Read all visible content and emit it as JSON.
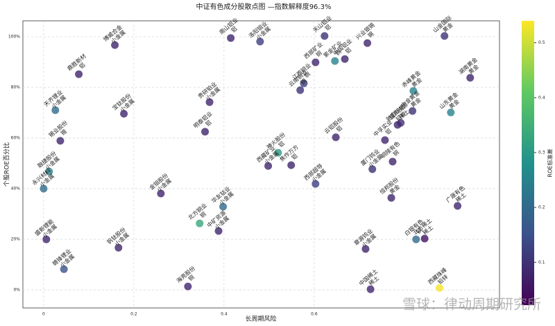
{
  "chart_data": {
    "type": "scatter",
    "title": "中证有色成分股散点图  —指数解释度96.3%",
    "xlabel": "长周期风险",
    "ylabel": "个股ROE百分比",
    "colorbar_label": "ROE标准差",
    "watermark": "雪球：律动周期研究所",
    "colormap": "viridis",
    "grid": true,
    "names": [
      "鼎胜新材",
      "博威合金",
      "南山铝业",
      "洛阳钼业",
      "天山铝业",
      "中国铝业",
      "紫金矿业",
      "西部矿业",
      "江西铜业",
      "云南铜业",
      "兴业银锡",
      "山金国际",
      "湖南黄金",
      "赤峰黄金",
      "中金黄金",
      "山东黄金",
      "盛和资源",
      "驰宏锌锗",
      "中孚实业",
      "云铝股份",
      "神火股份",
      "西藏矿业",
      "焦作万方",
      "西部超导",
      "厦门钨业",
      "铜陵有色",
      "恒邦股份",
      "广晟有色",
      "章源钨业",
      "中国稀土",
      "北方稀土",
      "白银有色",
      "西藏珠峰",
      "天齐锂业",
      "锡业股份",
      "融捷股份",
      "永兴材料",
      "盛新锂能",
      "赣锋锂业",
      "宝钛股份",
      "钒钛股份",
      "金钼股份",
      "明泰铝业",
      "贵研铂业",
      "北方铜业",
      "华友钴业",
      "中矿资源",
      "海亮股份"
    ],
    "sectors": [
      "铝",
      "小金属",
      "铝",
      "小金属",
      "铝",
      "铝",
      "铜",
      "铜",
      "铜",
      "铜",
      "锡",
      "黄金",
      "黄金",
      "黄金",
      "黄金",
      "黄金",
      "稀土",
      "铅锌",
      "铝",
      "铝",
      "铝",
      "小金属",
      "铝",
      "小金属",
      "小金属",
      "铜",
      "黄金",
      "稀土",
      "小金属",
      "稀土",
      "稀土",
      "铜",
      "铅锌",
      "小金属",
      "锡",
      "小金属",
      "小金属",
      "小金属",
      "小金属",
      "小金属",
      "小金属",
      "小金属",
      "铝",
      "小金属",
      "铜",
      "小金属",
      "小金属",
      "铜"
    ],
    "x": [
      0.078,
      0.158,
      0.415,
      0.48,
      0.623,
      0.668,
      0.646,
      0.603,
      0.577,
      0.569,
      0.718,
      0.889,
      0.946,
      0.82,
      0.818,
      0.903,
      0.792,
      0.785,
      0.757,
      0.648,
      0.52,
      0.498,
      0.549,
      0.603,
      0.729,
      0.774,
      0.771,
      0.918,
      0.714,
      0.725,
      0.845,
      0.826,
      0.878,
      0.026,
      0.037,
      0.012,
      0,
      0.006,
      0.045,
      0.178,
      0.166,
      0.26,
      0.358,
      0.368,
      0.346,
      0.398,
      0.388,
      0.32
    ],
    "y": [
      85.2,
      96.7,
      99.5,
      98.1,
      100.3,
      91.2,
      90.4,
      89.9,
      81.6,
      78.9,
      97.5,
      100.3,
      83.8,
      78.6,
      70.7,
      70.1,
      66.0,
      65.2,
      59.2,
      60.3,
      54.2,
      49.0,
      49.3,
      41.9,
      47.7,
      50.7,
      36.4,
      33.2,
      16.2,
      0.3,
      20.3,
      20.0,
      0.8,
      71.0,
      58.9,
      46.8,
      40,
      20.0,
      8.2,
      69.6,
      16.7,
      38.1,
      62.5,
      74.2,
      26.3,
      32.9,
      23.3,
      1.4
    ],
    "color_values": [
      0.08,
      0.08,
      0.08,
      0.12,
      0.1,
      0.08,
      0.25,
      0.08,
      0.12,
      0.1,
      0.08,
      0.1,
      0.08,
      0.25,
      0.1,
      0.25,
      0.1,
      0.08,
      0.08,
      0.08,
      0.3,
      0.08,
      0.08,
      0.12,
      0.1,
      0.08,
      0.08,
      0.08,
      0.08,
      0.08,
      0.05,
      0.2,
      0.53,
      0.2,
      0.08,
      0.25,
      0.2,
      0.08,
      0.15,
      0.08,
      0.08,
      0.08,
      0.08,
      0.08,
      0.33,
      0.2,
      0.08,
      0.08
    ],
    "xlim": [
      -0.046,
      1.011
    ],
    "ylim": [
      -7.1,
      106.3
    ],
    "xticks": [
      0.0,
      0.2,
      0.4,
      0.6
    ],
    "yticks": [
      {
        "value": 0,
        "label": "0%"
      },
      {
        "value": 20,
        "label": "20%"
      },
      {
        "value": 40,
        "label": "40%"
      },
      {
        "value": 60,
        "label": "60%"
      },
      {
        "value": 80,
        "label": "80%"
      },
      {
        "value": 100,
        "label": "100%"
      }
    ],
    "clim": [
      0.022,
      0.54
    ],
    "cticks": [
      0.1,
      0.2,
      0.3,
      0.4,
      0.5
    ]
  }
}
